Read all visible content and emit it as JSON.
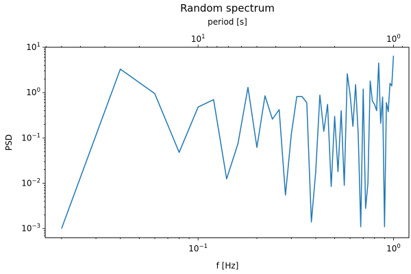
{
  "chart_data": {
    "type": "line",
    "title": "Random spectrum",
    "xlabel": "f [Hz]",
    "ylabel": "PSD",
    "secondary_xlabel": "period [s]",
    "x_scale": "log",
    "y_scale": "log",
    "xlim": [
      0.0165,
      1.2
    ],
    "ylim": [
      0.00063,
      10
    ],
    "grid": false,
    "line_color": "#1f77b4",
    "x_ticks": [
      {
        "value": 0.1,
        "base": "10",
        "exp": "−1"
      },
      {
        "value": 1,
        "base": "10",
        "exp": "0"
      }
    ],
    "y_ticks": [
      {
        "value": 0.001,
        "base": "10",
        "exp": "−3"
      },
      {
        "value": 0.01,
        "base": "10",
        "exp": "−2"
      },
      {
        "value": 0.1,
        "base": "10",
        "exp": "−1"
      },
      {
        "value": 1,
        "base": "10",
        "exp": "0"
      },
      {
        "value": 10,
        "base": "10",
        "exp": "1"
      }
    ],
    "top_ticks": [
      {
        "value": 10,
        "base": "10",
        "exp": "1"
      },
      {
        "value": 1,
        "base": "10",
        "exp": "0"
      }
    ],
    "series": [
      {
        "x": [
          0.02,
          0.04,
          0.06,
          0.08,
          0.1,
          0.12,
          0.14,
          0.16,
          0.18,
          0.2,
          0.22,
          0.24,
          0.26,
          0.28,
          0.3,
          0.32,
          0.34,
          0.36,
          0.38,
          0.4,
          0.42,
          0.44,
          0.46,
          0.48,
          0.5,
          0.52,
          0.54,
          0.56,
          0.58,
          0.6,
          0.62,
          0.64,
          0.66,
          0.68,
          0.7,
          0.72,
          0.74,
          0.76,
          0.78,
          0.8,
          0.82,
          0.84,
          0.86,
          0.88,
          0.9,
          0.92,
          0.94,
          0.96,
          0.98,
          1.0
        ],
        "y": [
          0.001,
          3.3,
          0.95,
          0.048,
          0.48,
          0.7,
          0.0125,
          0.075,
          1.3,
          0.062,
          0.85,
          0.26,
          0.42,
          0.0055,
          0.12,
          0.82,
          0.82,
          0.6,
          0.0014,
          0.018,
          0.88,
          0.14,
          0.55,
          0.0085,
          0.3,
          0.018,
          0.4,
          0.009,
          2.6,
          0.9,
          0.18,
          1.5,
          0.12,
          0.0011,
          1.2,
          0.0028,
          0.01,
          1.8,
          0.65,
          0.55,
          0.4,
          4.5,
          0.21,
          0.8,
          0.0011,
          0.6,
          0.38,
          1.6,
          1.4,
          6.5
        ]
      }
    ]
  }
}
